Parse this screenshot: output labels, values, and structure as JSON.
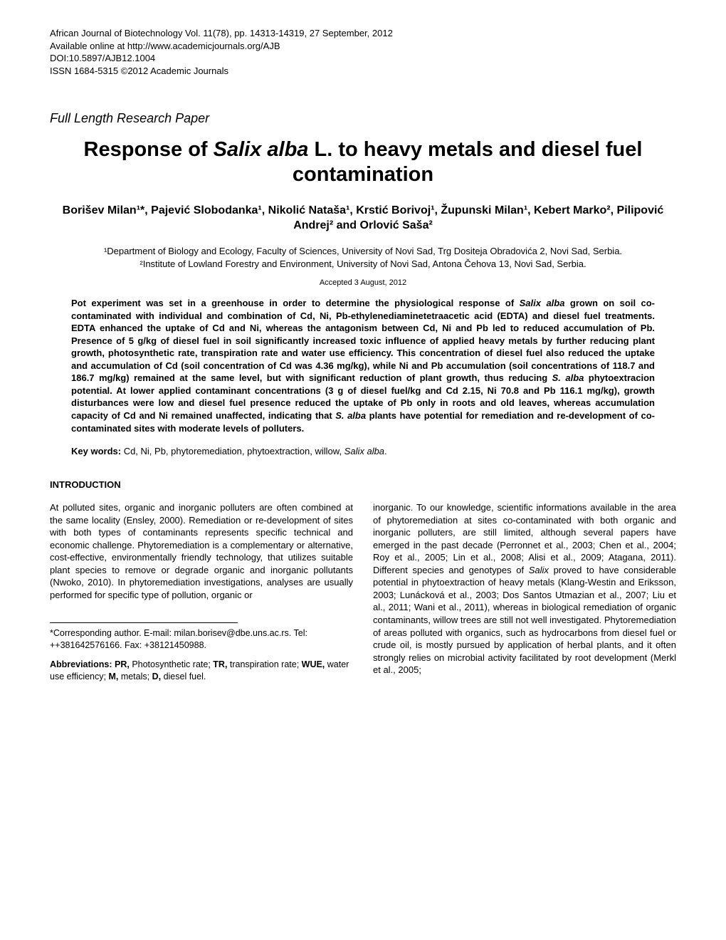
{
  "meta": {
    "line1": "African Journal of Biotechnology Vol. 11(78), pp. 14313-14319, 27 September, 2012",
    "line2": "Available online at http://www.academicjournals.org/AJB",
    "line3": "DOI:10.5897/AJB12.1004",
    "line4": "ISSN 1684-5315 ©2012 Academic Journals"
  },
  "paperType": "Full Length Research Paper",
  "title": {
    "pre": "Response of ",
    "italic": "Salix alba",
    "post": " L. to heavy metals and diesel fuel contamination"
  },
  "authors": "Borišev Milan¹*, Pajević Slobodanka¹, Nikolić Nataša¹, Krstić Borivoj¹, Župunski Milan¹, Kebert Marko², Pilipović Andrej² and Orlović Saša²",
  "affiliations": {
    "a1": "¹Department of Biology and Ecology, Faculty of Sciences, University of Novi Sad, Trg Dositeja Obradovića 2, Novi Sad, Serbia.",
    "a2": "²Institute of Lowland Forestry and Environment, University of Novi Sad, Antona Čehova 13, Novi Sad, Serbia."
  },
  "accepted": "Accepted 3 August, 2012",
  "abstract": {
    "part1": "Pot experiment was set in a greenhouse in order to determine the physiological response of ",
    "italic1": "Salix alba",
    "part2": " grown on soil co-contaminated with individual and combination of Cd, Ni, Pb-ethylenediaminetetraacetic acid (EDTA) and diesel fuel treatments. EDTA enhanced the uptake of Cd and Ni, whereas the antagonism between Cd, Ni and Pb led to reduced accumulation of Pb. Presence of 5 g/kg of diesel fuel in soil significantly increased toxic influence of applied heavy metals by further reducing plant growth, photosynthetic rate, transpiration rate and water use efficiency. This concentration of diesel fuel also reduced the uptake and accumulation of Cd (soil concentration of Cd was 4.36 mg/kg), while Ni and Pb accumulation (soil concentrations of 118.7 and 186.7 mg/kg) remained at the same level, but with significant reduction of plant growth, thus reducing ",
    "italic2": "S. alba",
    "part3": " phytoextracion potential. At lower applied contaminant concentrations (3 g of diesel fuel/kg and Cd 2.15, Ni 70.8 and Pb 116.1 mg/kg), growth disturbances were low and diesel fuel presence reduced the uptake of Pb only in roots and old leaves, whereas accumulation capacity of Cd and Ni remained unaffected, indicating that ",
    "italic3": "S. alba",
    "part4": " plants have potential for remediation and re-development of co-contaminated sites with moderate levels of polluters."
  },
  "keywords": {
    "label": "Key words:",
    "text": " Cd, Ni, Pb, phytoremediation, phytoextraction, willow, ",
    "italic": "Salix alba",
    "end": "."
  },
  "intro": {
    "heading": "INTRODUCTION",
    "col1": "At polluted sites, organic and inorganic polluters are often combined at the same locality (Ensley, 2000). Remediation or re-development of sites with both types of contaminants represents specific technical and economic challenge. Phytoremediation is a complementary or alternative, cost-effective, environmentally friendly technology, that utilizes suitable plant species to remove or degrade organic and inorganic pollutants (Nwoko, 2010). In phytoremediation investigations, analyses are usually performed for specific type of pollution, organic or",
    "col2_part1": "inorganic. To our knowledge, scientific informations available in the area of phytoremediation at sites co-contaminated with both organic and inorganic polluters, are still limited, although several papers have emerged in the past decade (Perronnet et al., 2003; Chen et al., 2004; Roy et al., 2005; Lin et al., 2008; Alisi et al., 2009; Atagana, 2011). Different species and genotypes of ",
    "col2_italic": "Salix",
    "col2_part2": " proved to have considerable potential in phytoextraction of heavy metals (Klang-Westin and Eriksson, 2003; Lunácková et al., 2003; Dos Santos Utmazian et al., 2007; Liu et al., 2011; Wani et al., 2011), whereas in biological remediation of organic contaminants, willow trees are still not well investigated. Phytoremediation of areas polluted with organics, such as hydrocarbons from diesel fuel or crude oil, is mostly pursued by application of herbal plants, and it often strongly relies on microbial activity facilitated by root development (Merkl et al., 2005;"
  },
  "footnote": {
    "corr": "*Corresponding author. E-mail: milan.borisev@dbe.uns.ac.rs. Tel: ++381642576166. Fax: +38121450988.",
    "abbr_label": "Abbreviations: ",
    "abbr_pr": "PR,",
    "abbr_pr_text": " Photosynthetic rate; ",
    "abbr_tr": "TR,",
    "abbr_tr_text": " transpiration rate; ",
    "abbr_wue": "WUE,",
    "abbr_wue_text": " water use efficiency; ",
    "abbr_m": "M,",
    "abbr_m_text": " metals; ",
    "abbr_d": "D,",
    "abbr_d_text": " diesel fuel."
  }
}
